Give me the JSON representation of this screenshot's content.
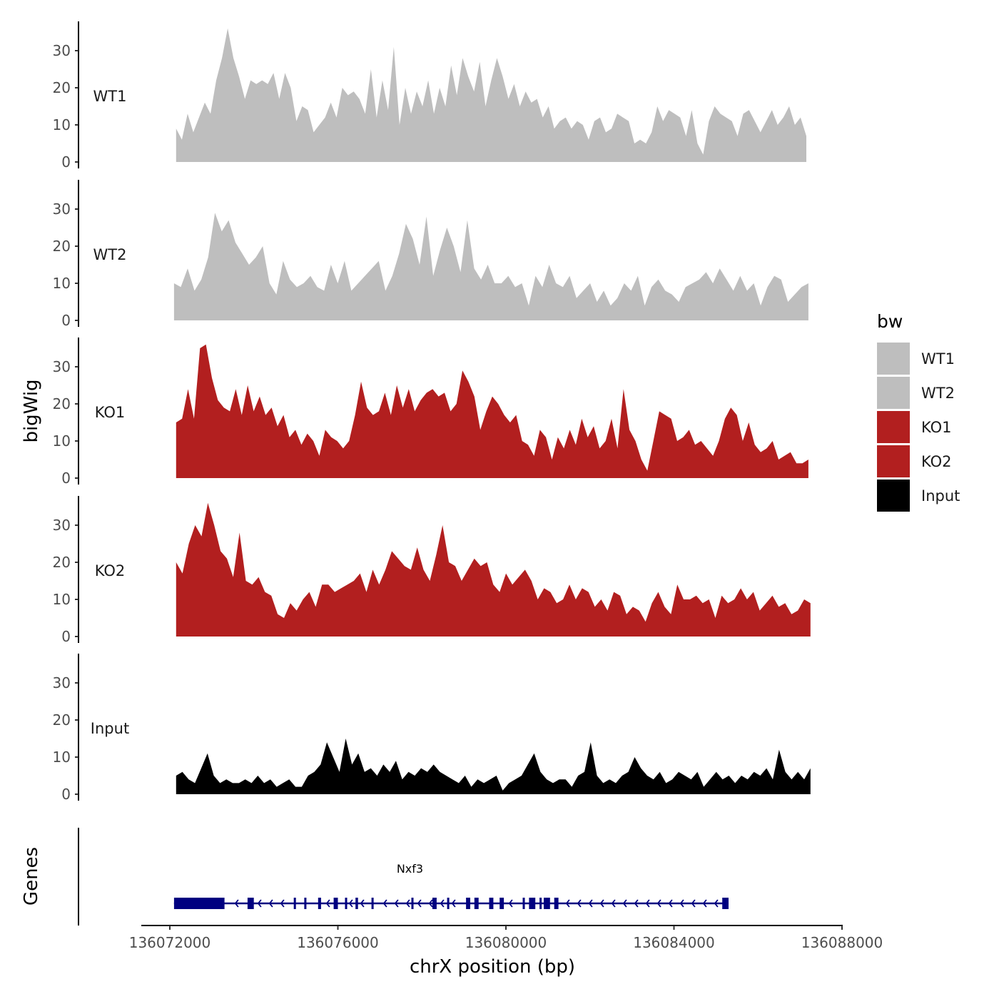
{
  "chart_data": {
    "type": "area",
    "title": "",
    "ylabel": "bigWig",
    "genes_ylabel": "Genes",
    "xlabel": "chrX position (bp)",
    "x_range": [
      136072000,
      136088000
    ],
    "y_range": [
      0,
      38
    ],
    "y_ticks": [
      0,
      10,
      20,
      30
    ],
    "x_ticks": [
      136072000,
      136076000,
      136080000,
      136084000,
      136088000
    ],
    "x_tick_labels": [
      "136072000",
      "136076000",
      "136080000",
      "136084000",
      "136088000"
    ],
    "colors": {
      "WT1": "#bebebe",
      "WT2": "#bebebe",
      "KO1": "#b21f1f",
      "KO2": "#b21f1f",
      "Input": "#000000",
      "gene": "#000080"
    },
    "legend": {
      "title": "bw",
      "position": "right",
      "entries": [
        "WT1",
        "WT2",
        "KO1",
        "KO2",
        "Input"
      ]
    },
    "series": [
      {
        "name": "WT1",
        "x_start": 136072150,
        "x_end": 136087150,
        "values": [
          9,
          6,
          13,
          8,
          12,
          16,
          13,
          22,
          28,
          36,
          28,
          23,
          17,
          22,
          21,
          22,
          21,
          24,
          17,
          24,
          20,
          11,
          15,
          14,
          8,
          10,
          12,
          16,
          12,
          20,
          18,
          19,
          17,
          13,
          25,
          12,
          22,
          14,
          31,
          10,
          20,
          13,
          19,
          15,
          22,
          13,
          20,
          15,
          26,
          18,
          28,
          23,
          19,
          27,
          15,
          22,
          28,
          23,
          17,
          21,
          15,
          19,
          16,
          17,
          12,
          15,
          9,
          11,
          12,
          9,
          11,
          10,
          6,
          11,
          12,
          8,
          9,
          13,
          12,
          11,
          5,
          6,
          5,
          8,
          15,
          11,
          14,
          13,
          12,
          7,
          14,
          5,
          2,
          11,
          15,
          13,
          12,
          11,
          7,
          13,
          14,
          11,
          8,
          11,
          14,
          10,
          12,
          15,
          10,
          12,
          7
        ]
      },
      {
        "name": "WT2",
        "x_start": 136072100,
        "x_end": 136087200,
        "values": [
          10,
          9,
          14,
          8,
          11,
          17,
          29,
          24,
          27,
          21,
          18,
          15,
          17,
          20,
          10,
          7,
          16,
          11,
          9,
          10,
          12,
          9,
          8,
          15,
          10,
          16,
          8,
          10,
          12,
          14,
          16,
          8,
          12,
          18,
          26,
          22,
          15,
          28,
          12,
          19,
          25,
          20,
          13,
          27,
          14,
          11,
          15,
          10,
          10,
          12,
          9,
          10,
          4,
          12,
          9,
          15,
          10,
          9,
          12,
          6,
          8,
          10,
          5,
          8,
          4,
          6,
          10,
          8,
          12,
          4,
          9,
          11,
          8,
          7,
          5,
          9,
          10,
          11,
          13,
          10,
          14,
          11,
          8,
          12,
          8,
          10,
          4,
          9,
          12,
          11,
          5,
          7,
          9,
          10
        ]
      },
      {
        "name": "KO1",
        "x_start": 136072150,
        "x_end": 136087200,
        "values": [
          15,
          16,
          24,
          16,
          35,
          36,
          27,
          21,
          19,
          18,
          24,
          17,
          25,
          18,
          22,
          17,
          19,
          14,
          17,
          11,
          13,
          9,
          12,
          10,
          6,
          13,
          11,
          10,
          8,
          10,
          17,
          26,
          19,
          17,
          18,
          23,
          17,
          25,
          19,
          24,
          18,
          21,
          23,
          24,
          22,
          23,
          18,
          20,
          29,
          26,
          22,
          13,
          18,
          22,
          20,
          17,
          15,
          17,
          10,
          9,
          6,
          13,
          11,
          5,
          11,
          8,
          13,
          9,
          16,
          11,
          14,
          8,
          10,
          16,
          8,
          24,
          13,
          10,
          5,
          2,
          10,
          18,
          17,
          16,
          10,
          11,
          13,
          9,
          10,
          8,
          6,
          10,
          16,
          19,
          17,
          10,
          15,
          9,
          7,
          8,
          10,
          5,
          6,
          7,
          4,
          4,
          5
        ]
      },
      {
        "name": "KO2",
        "x_start": 136072150,
        "x_end": 136087250,
        "values": [
          20,
          17,
          25,
          30,
          27,
          36,
          30,
          23,
          21,
          16,
          28,
          15,
          14,
          16,
          12,
          11,
          6,
          5,
          9,
          7,
          10,
          12,
          8,
          14,
          14,
          12,
          13,
          14,
          15,
          17,
          12,
          18,
          14,
          18,
          23,
          21,
          19,
          18,
          24,
          18,
          15,
          22,
          30,
          20,
          19,
          15,
          18,
          21,
          19,
          20,
          14,
          12,
          17,
          14,
          16,
          18,
          15,
          10,
          13,
          12,
          9,
          10,
          14,
          10,
          13,
          12,
          8,
          10,
          7,
          12,
          11,
          6,
          8,
          7,
          4,
          9,
          12,
          8,
          6,
          14,
          10,
          10,
          11,
          9,
          10,
          5,
          11,
          9,
          10,
          13,
          10,
          12,
          7,
          9,
          11,
          8,
          9,
          6,
          7,
          10,
          9
        ]
      },
      {
        "name": "Input",
        "x_start": 136072150,
        "x_end": 136087250,
        "values": [
          5,
          6,
          4,
          3,
          7,
          11,
          5,
          3,
          4,
          3,
          3,
          4,
          3,
          5,
          3,
          4,
          2,
          3,
          4,
          2,
          2,
          5,
          6,
          8,
          14,
          10,
          6,
          15,
          8,
          11,
          6,
          7,
          5,
          8,
          6,
          9,
          4,
          6,
          5,
          7,
          6,
          8,
          6,
          5,
          4,
          3,
          5,
          2,
          4,
          3,
          4,
          5,
          1,
          3,
          4,
          5,
          8,
          11,
          6,
          4,
          3,
          4,
          4,
          2,
          5,
          6,
          14,
          5,
          3,
          4,
          3,
          5,
          6,
          10,
          7,
          5,
          4,
          6,
          3,
          4,
          6,
          5,
          4,
          6,
          2,
          4,
          6,
          4,
          5,
          3,
          5,
          4,
          6,
          5,
          7,
          4,
          12,
          6,
          4,
          6,
          4,
          7
        ]
      }
    ],
    "genes": [
      {
        "name": "Nxf3",
        "start": 136072100,
        "end": 136085300,
        "strand": "-",
        "exons": [
          [
            136072100,
            136073300
          ],
          [
            136073850,
            136074000
          ],
          [
            136074950,
            136075000
          ],
          [
            136075200,
            136075250
          ],
          [
            136075530,
            136075600
          ],
          [
            136075900,
            136076000
          ],
          [
            136076170,
            136076200
          ],
          [
            136076420,
            136076480
          ],
          [
            136076800,
            136076850
          ],
          [
            136077750,
            136077800
          ],
          [
            136078250,
            136078350
          ],
          [
            136078600,
            136078650
          ],
          [
            136079050,
            136079150
          ],
          [
            136079250,
            136079350
          ],
          [
            136079600,
            136079700
          ],
          [
            136079850,
            136079950
          ],
          [
            136080400,
            136080450
          ],
          [
            136080550,
            136080700
          ],
          [
            136080800,
            136080850
          ],
          [
            136080900,
            136081050
          ],
          [
            136081150,
            136081250
          ],
          [
            136085150,
            136085300
          ]
        ]
      }
    ]
  }
}
